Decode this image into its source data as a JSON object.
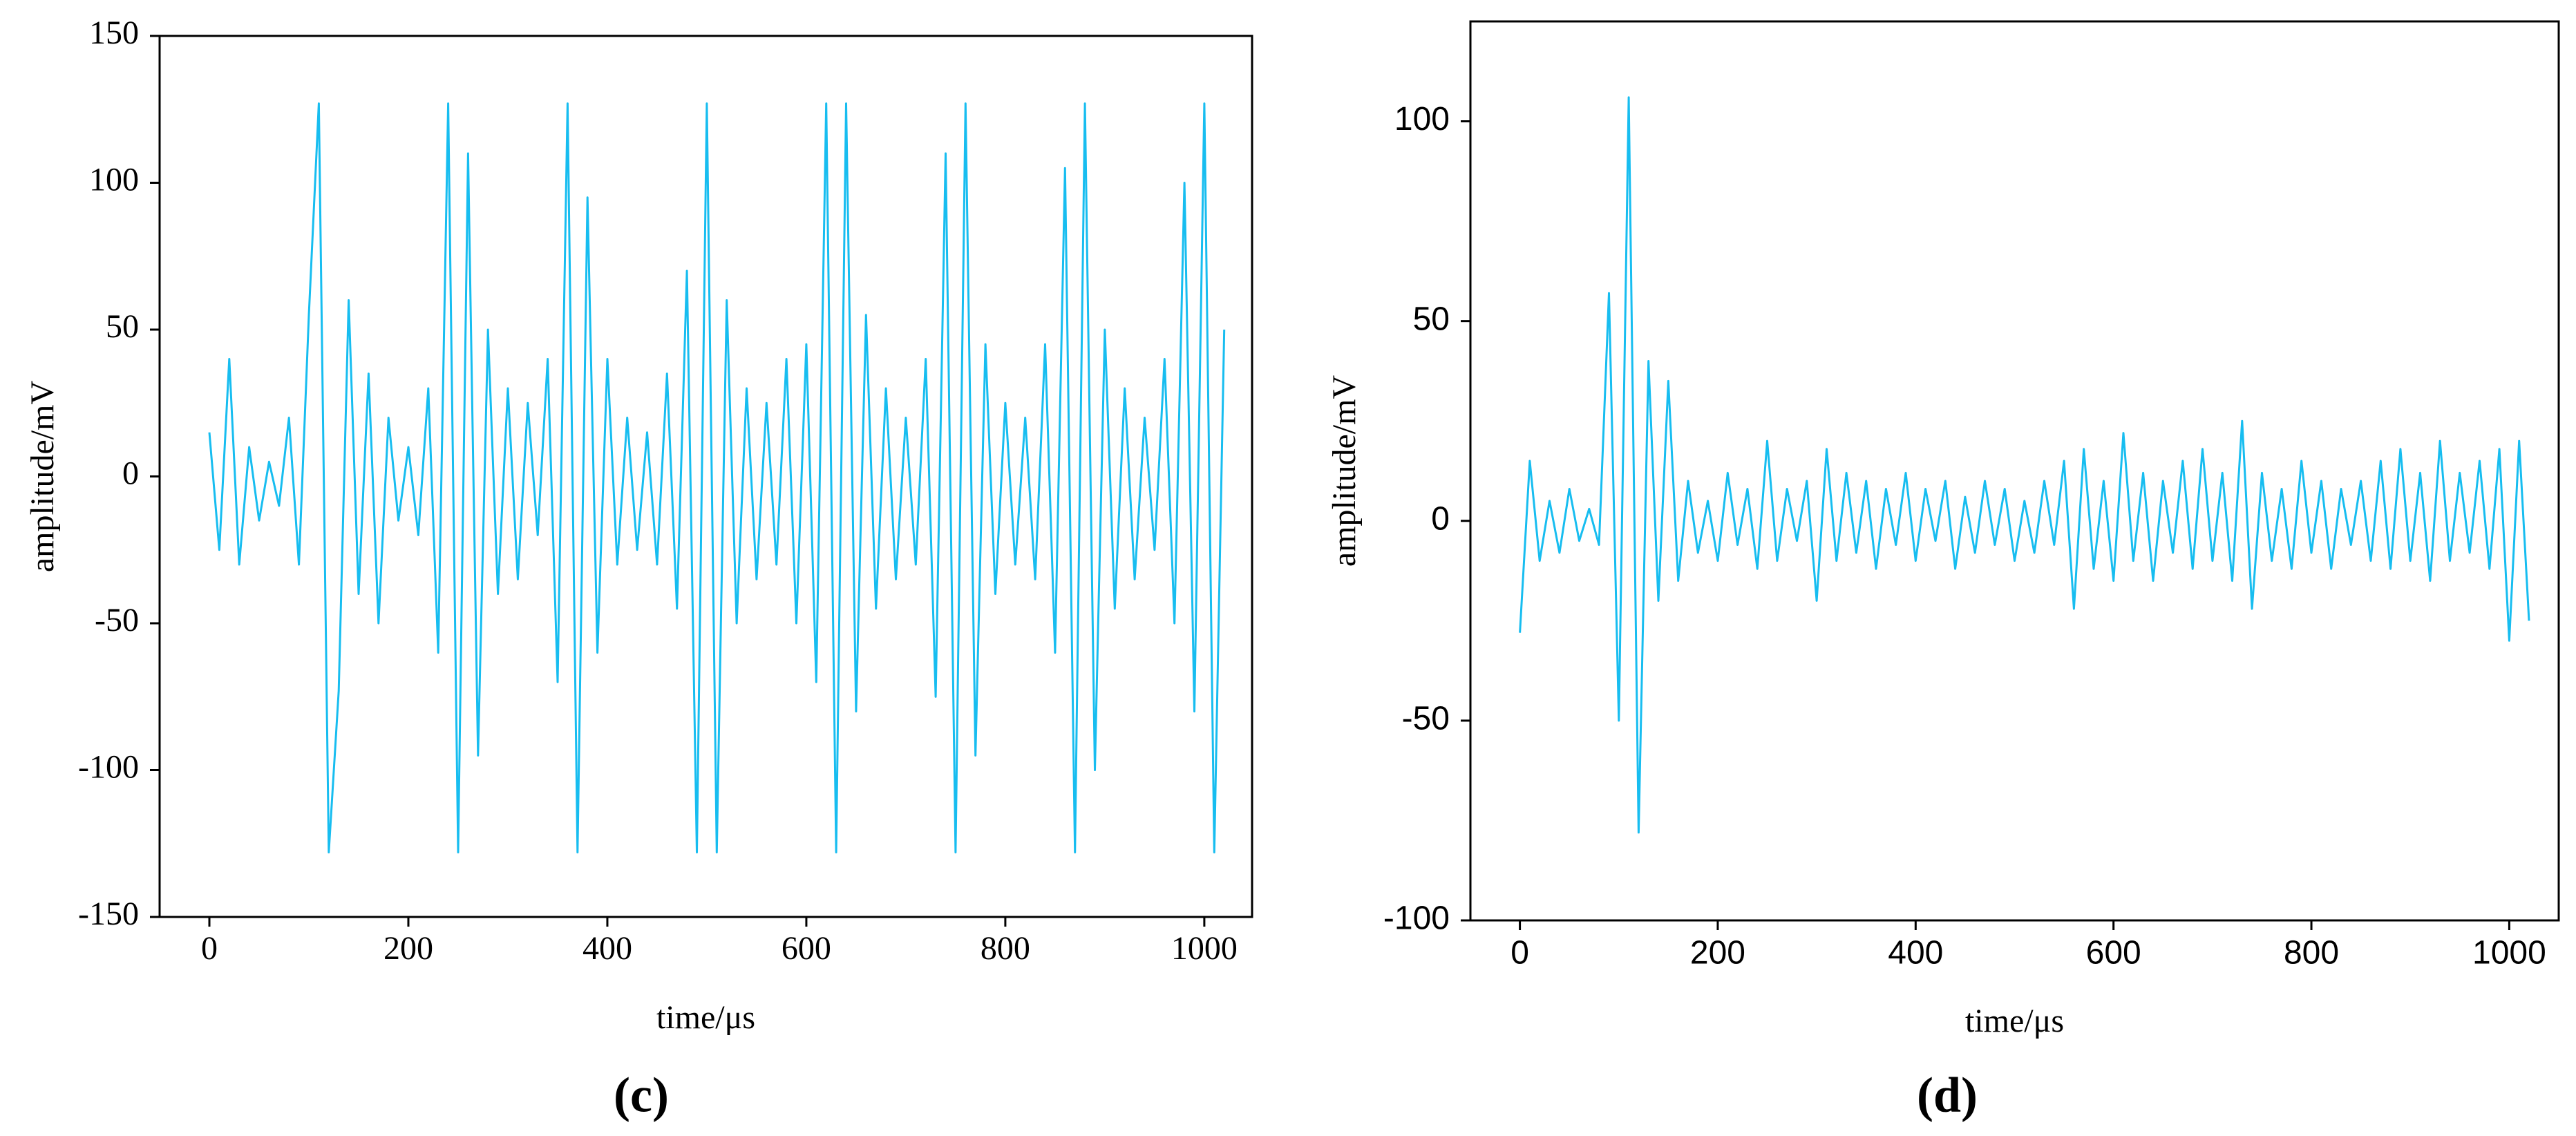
{
  "chart_data": [
    {
      "type": "line",
      "caption": "(c)",
      "xlabel": "time/μs",
      "ylabel": "amplitude/mV",
      "color": "#17bdf0",
      "xlim": [
        -50,
        1048
      ],
      "ylim": [
        -150,
        150
      ],
      "xticks": [
        0,
        200,
        400,
        600,
        800,
        1000
      ],
      "yticks": [
        -150,
        -100,
        -50,
        0,
        50,
        100,
        150
      ],
      "x": [
        0,
        10,
        20,
        30,
        40,
        50,
        60,
        70,
        80,
        90,
        100,
        110,
        120,
        130,
        140,
        150,
        160,
        170,
        180,
        190,
        200,
        210,
        220,
        230,
        240,
        250,
        260,
        270,
        280,
        290,
        300,
        310,
        320,
        330,
        340,
        350,
        360,
        370,
        380,
        390,
        400,
        410,
        420,
        430,
        440,
        450,
        460,
        470,
        480,
        490,
        500,
        510,
        520,
        530,
        540,
        550,
        560,
        570,
        580,
        590,
        600,
        610,
        620,
        630,
        640,
        650,
        660,
        670,
        680,
        690,
        700,
        710,
        720,
        730,
        740,
        750,
        760,
        770,
        780,
        790,
        800,
        810,
        820,
        830,
        840,
        850,
        860,
        870,
        880,
        890,
        900,
        910,
        920,
        930,
        940,
        950,
        960,
        970,
        980,
        990,
        1000,
        1010,
        1020
      ],
      "series": [
        {
          "values": [
            15,
            -25,
            40,
            -30,
            10,
            -15,
            5,
            -10,
            20,
            -30,
            55,
            127,
            -128,
            -73,
            60,
            -40,
            35,
            -50,
            20,
            -15,
            10,
            -20,
            30,
            -60,
            127,
            -128,
            110,
            -95,
            50,
            -40,
            30,
            -35,
            25,
            -20,
            40,
            -70,
            127,
            -128,
            95,
            -60,
            40,
            -30,
            20,
            -25,
            15,
            -30,
            35,
            -45,
            70,
            -128,
            127,
            -128,
            60,
            -50,
            30,
            -35,
            25,
            -30,
            40,
            -50,
            45,
            -70,
            127,
            -128,
            127,
            -80,
            55,
            -45,
            30,
            -35,
            20,
            -30,
            40,
            -75,
            110,
            -128,
            127,
            -95,
            45,
            -40,
            25,
            -30,
            20,
            -35,
            45,
            -60,
            105,
            -128,
            127,
            -100,
            50,
            -45,
            30,
            -35,
            20,
            -25,
            40,
            -50,
            100,
            -80,
            127,
            -128,
            50
          ]
        }
      ]
    },
    {
      "type": "line",
      "caption": "(d)",
      "xlabel": "time/μs",
      "ylabel": "amplitude/mV",
      "color": "#17bdf0",
      "xlim": [
        -50,
        1050
      ],
      "ylim": [
        -100,
        125
      ],
      "xticks": [
        0,
        200,
        400,
        600,
        800,
        1000
      ],
      "yticks": [
        -100,
        -50,
        0,
        50,
        100
      ],
      "x": [
        0,
        10,
        20,
        30,
        40,
        50,
        60,
        70,
        80,
        90,
        100,
        110,
        120,
        130,
        140,
        150,
        160,
        170,
        180,
        190,
        200,
        210,
        220,
        230,
        240,
        250,
        260,
        270,
        280,
        290,
        300,
        310,
        320,
        330,
        340,
        350,
        360,
        370,
        380,
        390,
        400,
        410,
        420,
        430,
        440,
        450,
        460,
        470,
        480,
        490,
        500,
        510,
        520,
        530,
        540,
        550,
        560,
        570,
        580,
        590,
        600,
        610,
        620,
        630,
        640,
        650,
        660,
        670,
        680,
        690,
        700,
        710,
        720,
        730,
        740,
        750,
        760,
        770,
        780,
        790,
        800,
        810,
        820,
        830,
        840,
        850,
        860,
        870,
        880,
        890,
        900,
        910,
        920,
        930,
        940,
        950,
        960,
        970,
        980,
        990,
        1000,
        1010,
        1020
      ],
      "series": [
        {
          "values": [
            -28,
            15,
            -10,
            5,
            -8,
            8,
            -5,
            3,
            -6,
            57,
            -50,
            106,
            -78,
            40,
            -20,
            35,
            -15,
            10,
            -8,
            5,
            -10,
            12,
            -6,
            8,
            -12,
            20,
            -10,
            8,
            -5,
            10,
            -20,
            18,
            -10,
            12,
            -8,
            10,
            -12,
            8,
            -6,
            12,
            -10,
            8,
            -5,
            10,
            -12,
            6,
            -8,
            10,
            -6,
            8,
            -10,
            5,
            -8,
            10,
            -6,
            15,
            -22,
            18,
            -12,
            10,
            -15,
            22,
            -10,
            12,
            -15,
            10,
            -8,
            15,
            -12,
            18,
            -10,
            12,
            -15,
            25,
            -22,
            12,
            -10,
            8,
            -12,
            15,
            -8,
            10,
            -12,
            8,
            -6,
            10,
            -10,
            15,
            -12,
            18,
            -10,
            12,
            -15,
            20,
            -10,
            12,
            -8,
            15,
            -12,
            18,
            -30,
            20,
            -25
          ]
        }
      ]
    }
  ]
}
